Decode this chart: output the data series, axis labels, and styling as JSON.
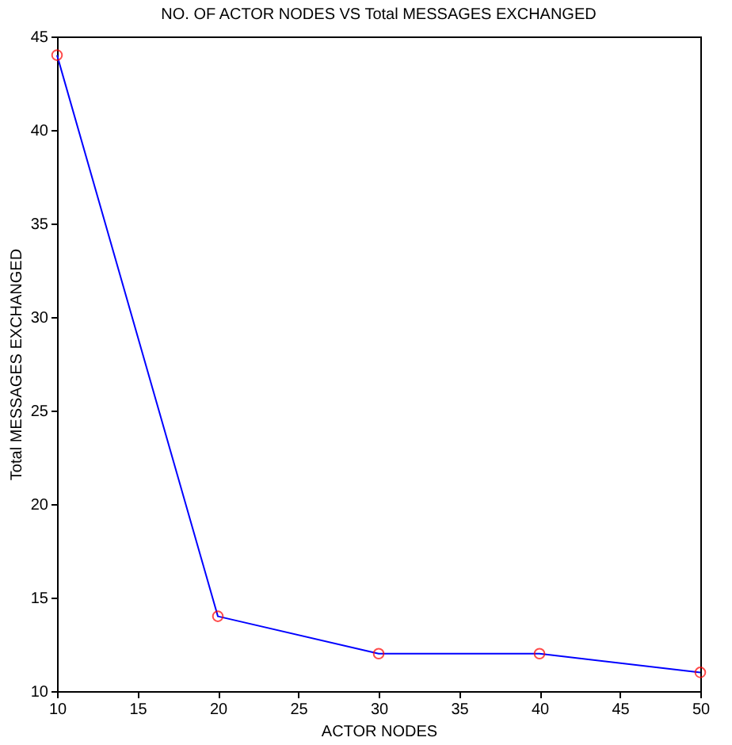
{
  "chart_data": {
    "type": "line",
    "title": "NO. OF ACTOR NODES VS Total MESSAGES EXCHANGED",
    "xlabel": "ACTOR NODES",
    "ylabel": "Total MESSAGES EXCHANGED",
    "x": [
      10,
      20,
      30,
      40,
      50
    ],
    "series": [
      {
        "color": "#0000ff",
        "values": [
          44,
          14,
          12,
          12,
          11
        ]
      }
    ],
    "xlim": [
      10,
      50
    ],
    "xticks": [
      10,
      15,
      20,
      25,
      30,
      35,
      40,
      45,
      50
    ],
    "ylim": [
      10,
      45
    ],
    "yticks": [
      10,
      15,
      20,
      25,
      30,
      35,
      40,
      45
    ],
    "grid": false,
    "marker": "circle",
    "line_style": "solid"
  }
}
